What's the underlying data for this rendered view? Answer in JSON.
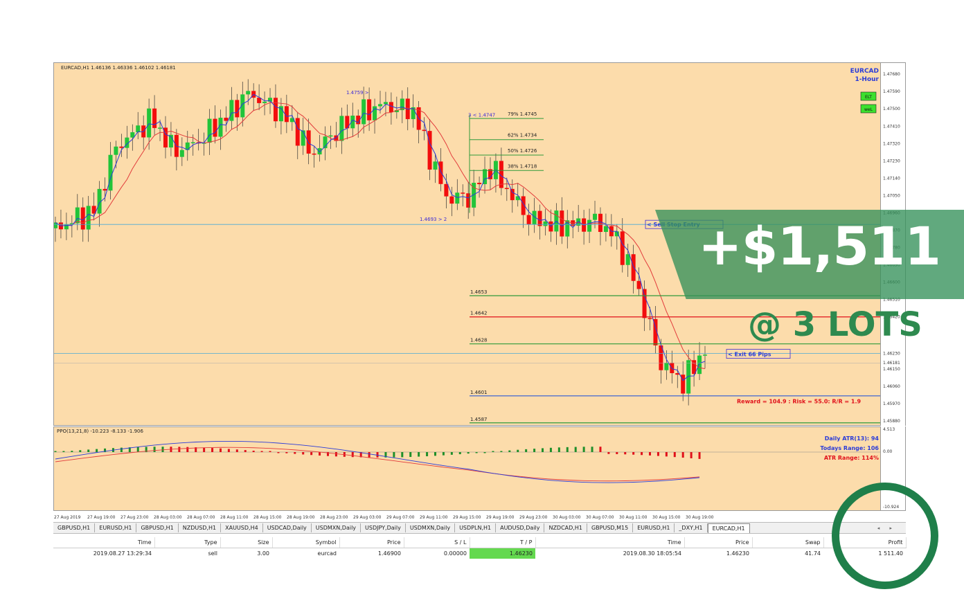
{
  "chart_header": "EURCAD,H1  1.46136 1.46336 1.46102 1.46181",
  "symbol_label": {
    "line1": "EURCAD",
    "line2": "1-Hour"
  },
  "badges": [
    "ELT",
    "weL"
  ],
  "annotations": {
    "high_label": "1.4759 >",
    "fib_top_label": "3 < 1.4747",
    "low_label": "1.4693 > 2",
    "sell_stop": "< Sell Stop Entry",
    "exit": "< Exit 66 Pips",
    "reward_risk": "Reward = 104.9 : Risk = 55.0: R/R = 1.9"
  },
  "fib_levels": [
    {
      "label": "79% 1.4745",
      "price": 1.4745
    },
    {
      "label": "62% 1.4734",
      "price": 1.4734
    },
    {
      "label": "50% 1.4726",
      "price": 1.4726
    },
    {
      "label": "38% 1.4718",
      "price": 1.4718
    }
  ],
  "levels": [
    {
      "label": "1.4653",
      "price": 1.4653,
      "color": "#2e9a3a"
    },
    {
      "label": "1.4642",
      "price": 1.4642,
      "color": "#e0101a"
    },
    {
      "label": "1.4628",
      "price": 1.4628,
      "color": "#2e9a3a"
    },
    {
      "label": "1.4601",
      "price": 1.4601,
      "color": "#2b59d6"
    },
    {
      "label": "1.4587",
      "price": 1.4587,
      "color": "#2e9a3a"
    }
  ],
  "price_axis": [
    "1.47680",
    "1.47590",
    "1.47500",
    "1.47410",
    "1.47320",
    "1.47230",
    "1.47140",
    "1.47050",
    "1.46960",
    "1.46870",
    "1.46780",
    "1.46690",
    "1.46600",
    "1.46510",
    "1.46420",
    "1.46230",
    "1.46181",
    "1.46150",
    "1.46060",
    "1.45970",
    "1.45880"
  ],
  "price_range": [
    1.4588,
    1.4772
  ],
  "osc_header": "PPO(13,21,8) -10.223 -8.133 -1.906",
  "osc_axis": [
    "4.513",
    "0.00",
    "-10.924"
  ],
  "atr_info": {
    "daily": "Daily ATR(13): 94",
    "todays": "Todays Range: 106",
    "atr": "ATR Range: 114%"
  },
  "time_axis": [
    "27 Aug 2019",
    "27 Aug 19:00",
    "27 Aug 23:00",
    "28 Aug 03:00",
    "28 Aug 07:00",
    "28 Aug 11:00",
    "28 Aug 15:00",
    "28 Aug 19:00",
    "28 Aug 23:00",
    "29 Aug 03:00",
    "29 Aug 07:00",
    "29 Aug 11:00",
    "29 Aug 15:00",
    "29 Aug 19:00",
    "29 Aug 23:00",
    "30 Aug 03:00",
    "30 Aug 07:00",
    "30 Aug 11:00",
    "30 Aug 15:00",
    "30 Aug 19:00"
  ],
  "tabs": [
    "GBPUSD,H1",
    "EURUSD,H1",
    "GBPUSD,H1",
    "NZDUSD,H1",
    "XAUUSD,H4",
    "USDCAD,Daily",
    "USDMXN,Daily",
    "USDJPY,Daily",
    "USDMXN,Daily",
    "USDPLN,H1",
    "AUDUSD,Daily",
    "NZDCAD,H1",
    "GBPUSD,M15",
    "EURUSD,H1",
    "_DXY,H1",
    "EURCAD,H1"
  ],
  "active_tab": "EURCAD,H1",
  "terminal": {
    "headers": [
      "Time",
      "Type",
      "Size",
      "Symbol",
      "Price",
      "S / L",
      "T / P",
      "Time",
      "Price",
      "Swap",
      "Profit"
    ],
    "row": [
      "2019.08.27 13:29:34",
      "sell",
      "3.00",
      "eurcad",
      "1.46900",
      "0.00000",
      "1.46230",
      "2019.08.30 18:05:54",
      "1.46230",
      "41.74",
      "1 511.40"
    ]
  },
  "overlay": {
    "profit": "+$1,511",
    "lots": "@ 3 LOTS"
  },
  "colors": {
    "bull": "#22c43a",
    "bear": "#f20d0d",
    "chart_bg": "#fcdcab",
    "banner": "#34915a"
  }
}
